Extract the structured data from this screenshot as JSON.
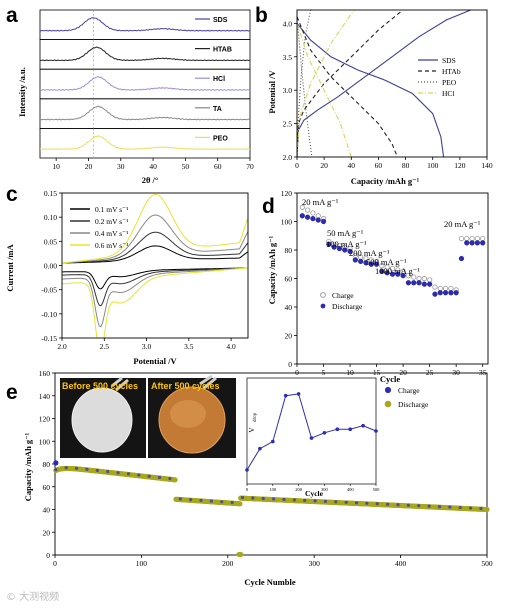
{
  "panels": {
    "a": {
      "letter": "a",
      "ylabel": "Intensity /a.u.",
      "xlabel": "2θ /°",
      "xlim": [
        5,
        70
      ],
      "xticks": [
        10,
        20,
        30,
        40,
        50,
        60,
        70
      ],
      "series": [
        {
          "name": "SDS",
          "color": "#4b3fa8",
          "peak": 21.5
        },
        {
          "name": "HTAB",
          "color": "#222222",
          "peak": 22.5
        },
        {
          "name": "HCl",
          "color": "#9d8ce0",
          "peak": 23
        },
        {
          "name": "TA",
          "color": "#888888",
          "peak": 23
        },
        {
          "name": "PEO",
          "color": "#e8e05a",
          "peak": 23
        }
      ]
    },
    "b": {
      "letter": "b",
      "ylabel": "Potential /V",
      "xlabel": "Capacity /mAh g⁻¹",
      "xlim": [
        0,
        140
      ],
      "ylim": [
        2.0,
        4.2
      ],
      "xticks": [
        0,
        20,
        40,
        60,
        80,
        100,
        120,
        140
      ],
      "yticks": [
        "2.0",
        "2.5",
        "3.0",
        "3.5",
        "4.0"
      ],
      "series": [
        {
          "name": "SDS",
          "color": "#3f3f9c",
          "dash": "",
          "charge": [
            [
              0,
              2.0
            ],
            [
              1,
              2.4
            ],
            [
              5,
              2.55
            ],
            [
              15,
              2.7
            ],
            [
              30,
              2.9
            ],
            [
              50,
              3.2
            ],
            [
              70,
              3.5
            ],
            [
              90,
              3.8
            ],
            [
              110,
              4.05
            ],
            [
              128,
              4.2
            ]
          ],
          "discharge": [
            [
              0,
              4.0
            ],
            [
              10,
              3.75
            ],
            [
              25,
              3.5
            ],
            [
              45,
              3.3
            ],
            [
              65,
              3.15
            ],
            [
              85,
              2.95
            ],
            [
              100,
              2.65
            ],
            [
              106,
              2.3
            ],
            [
              108,
              2.0
            ]
          ]
        },
        {
          "name": "HTAb",
          "color": "#222222",
          "dash": "4,3",
          "charge": [
            [
              0,
              2.0
            ],
            [
              1,
              2.5
            ],
            [
              5,
              2.7
            ],
            [
              20,
              3.1
            ],
            [
              40,
              3.5
            ],
            [
              60,
              3.9
            ],
            [
              78,
              4.2
            ]
          ],
          "discharge": [
            [
              0,
              4.1
            ],
            [
              10,
              3.6
            ],
            [
              25,
              3.2
            ],
            [
              45,
              2.8
            ],
            [
              60,
              2.5
            ],
            [
              70,
              2.2
            ],
            [
              74,
              2.0
            ]
          ]
        },
        {
          "name": "PEO",
          "color": "#555555",
          "dash": "1,2",
          "charge": [
            [
              0,
              2.0
            ],
            [
              1,
              2.6
            ],
            [
              3,
              3.2
            ],
            [
              6,
              3.8
            ],
            [
              10,
              4.2
            ]
          ],
          "discharge": [
            [
              0,
              4.1
            ],
            [
              3,
              3.4
            ],
            [
              6,
              2.8
            ],
            [
              9,
              2.3
            ],
            [
              11,
              2.0
            ]
          ]
        },
        {
          "name": "HCl",
          "color": "#d6d65a",
          "dash": "5,2,1,2",
          "charge": [
            [
              0,
              2.0
            ],
            [
              2,
              2.6
            ],
            [
              10,
              3.1
            ],
            [
              25,
              3.7
            ],
            [
              42,
              4.2
            ]
          ],
          "discharge": [
            [
              0,
              4.0
            ],
            [
              8,
              3.5
            ],
            [
              20,
              3.0
            ],
            [
              32,
              2.5
            ],
            [
              40,
              2.0
            ]
          ]
        }
      ]
    },
    "c": {
      "letter": "c",
      "ylabel": "Current /mA",
      "xlabel": "Potential /V",
      "xlim": [
        2.0,
        4.2
      ],
      "ylim": [
        -0.15,
        0.15
      ],
      "xticks": [
        "2.0",
        "2.5",
        "3.0",
        "3.5",
        "4.0"
      ],
      "yticks": [
        "-0.15",
        "-0.10",
        "-0.05",
        "0.00",
        "0.05",
        "0.10",
        "0.15"
      ],
      "series": [
        {
          "name": "0.1 mV s⁻¹",
          "color": "#000000",
          "scale": 0.25
        },
        {
          "name": "0.2 mV s⁻¹",
          "color": "#333333",
          "scale": 0.45
        },
        {
          "name": "0.4 mV s⁻¹",
          "color": "#888888",
          "scale": 0.7
        },
        {
          "name": "0.6 mV s⁻¹",
          "color": "#e6e62e",
          "scale": 1.0
        }
      ]
    },
    "d": {
      "letter": "d",
      "ylabel": "Capacity /mAh g⁻¹",
      "xlabel": "Cycle",
      "xlim": [
        0,
        36
      ],
      "ylim": [
        0,
        120
      ],
      "xticks": [
        0,
        5,
        10,
        15,
        20,
        25,
        30,
        35
      ],
      "yticks": [
        0,
        20,
        40,
        60,
        80,
        100,
        120
      ],
      "legend": [
        "Charge",
        "Discharge"
      ],
      "annotations": [
        "20 mA g⁻¹",
        "50 mA g⁻¹",
        "100 mA g⁻¹",
        "200 mA g⁻¹",
        "500 mA g⁻¹",
        "1000 mA g⁻¹",
        "20 mA g⁻¹"
      ],
      "charge": [
        110,
        108,
        106,
        104,
        102,
        86,
        84,
        83,
        82,
        81,
        76,
        75,
        74,
        73,
        72,
        69,
        68,
        67,
        66,
        65,
        62,
        61,
        60,
        60,
        59,
        54,
        53,
        53,
        53,
        52,
        88,
        88,
        88,
        88,
        88
      ],
      "discharge": [
        104,
        103,
        102,
        101,
        100,
        84,
        82,
        81,
        80,
        79,
        73,
        72,
        71,
        70,
        70,
        65,
        64,
        63,
        63,
        62,
        57,
        57,
        57,
        56,
        56,
        49,
        50,
        50,
        50,
        50,
        74,
        85,
        85,
        85,
        85
      ]
    },
    "e": {
      "letter": "e",
      "ylabel": "Capacity /mAh g⁻¹",
      "xlabel": "Cycle Numble",
      "xlim": [
        0,
        500
      ],
      "ylim": [
        0,
        160
      ],
      "xticks": [
        0,
        100,
        200,
        300,
        400,
        500
      ],
      "yticks": [
        0,
        20,
        40,
        60,
        80,
        100,
        120,
        140,
        160
      ],
      "legend": [
        "Charge",
        "Discharge"
      ],
      "photo_labels": [
        "Before 500 cycles",
        "After 500 cycles"
      ],
      "inset": {
        "ylabel": "V",
        "ylabel_sub": "drop",
        "xlabel": "Cycle",
        "xticks": [
          0,
          100,
          200,
          300,
          400,
          500
        ],
        "points": [
          [
            0,
            0.48
          ],
          [
            50,
            0.6
          ],
          [
            100,
            0.64
          ],
          [
            150,
            0.9
          ],
          [
            200,
            0.91
          ],
          [
            250,
            0.66
          ],
          [
            300,
            0.69
          ],
          [
            350,
            0.71
          ],
          [
            400,
            0.71
          ],
          [
            450,
            0.73
          ],
          [
            500,
            0.7
          ]
        ]
      }
    }
  },
  "watermark": "© 大测视频",
  "colors": {
    "charge": "#2b2bb8",
    "discharge": "#a8a81e"
  }
}
